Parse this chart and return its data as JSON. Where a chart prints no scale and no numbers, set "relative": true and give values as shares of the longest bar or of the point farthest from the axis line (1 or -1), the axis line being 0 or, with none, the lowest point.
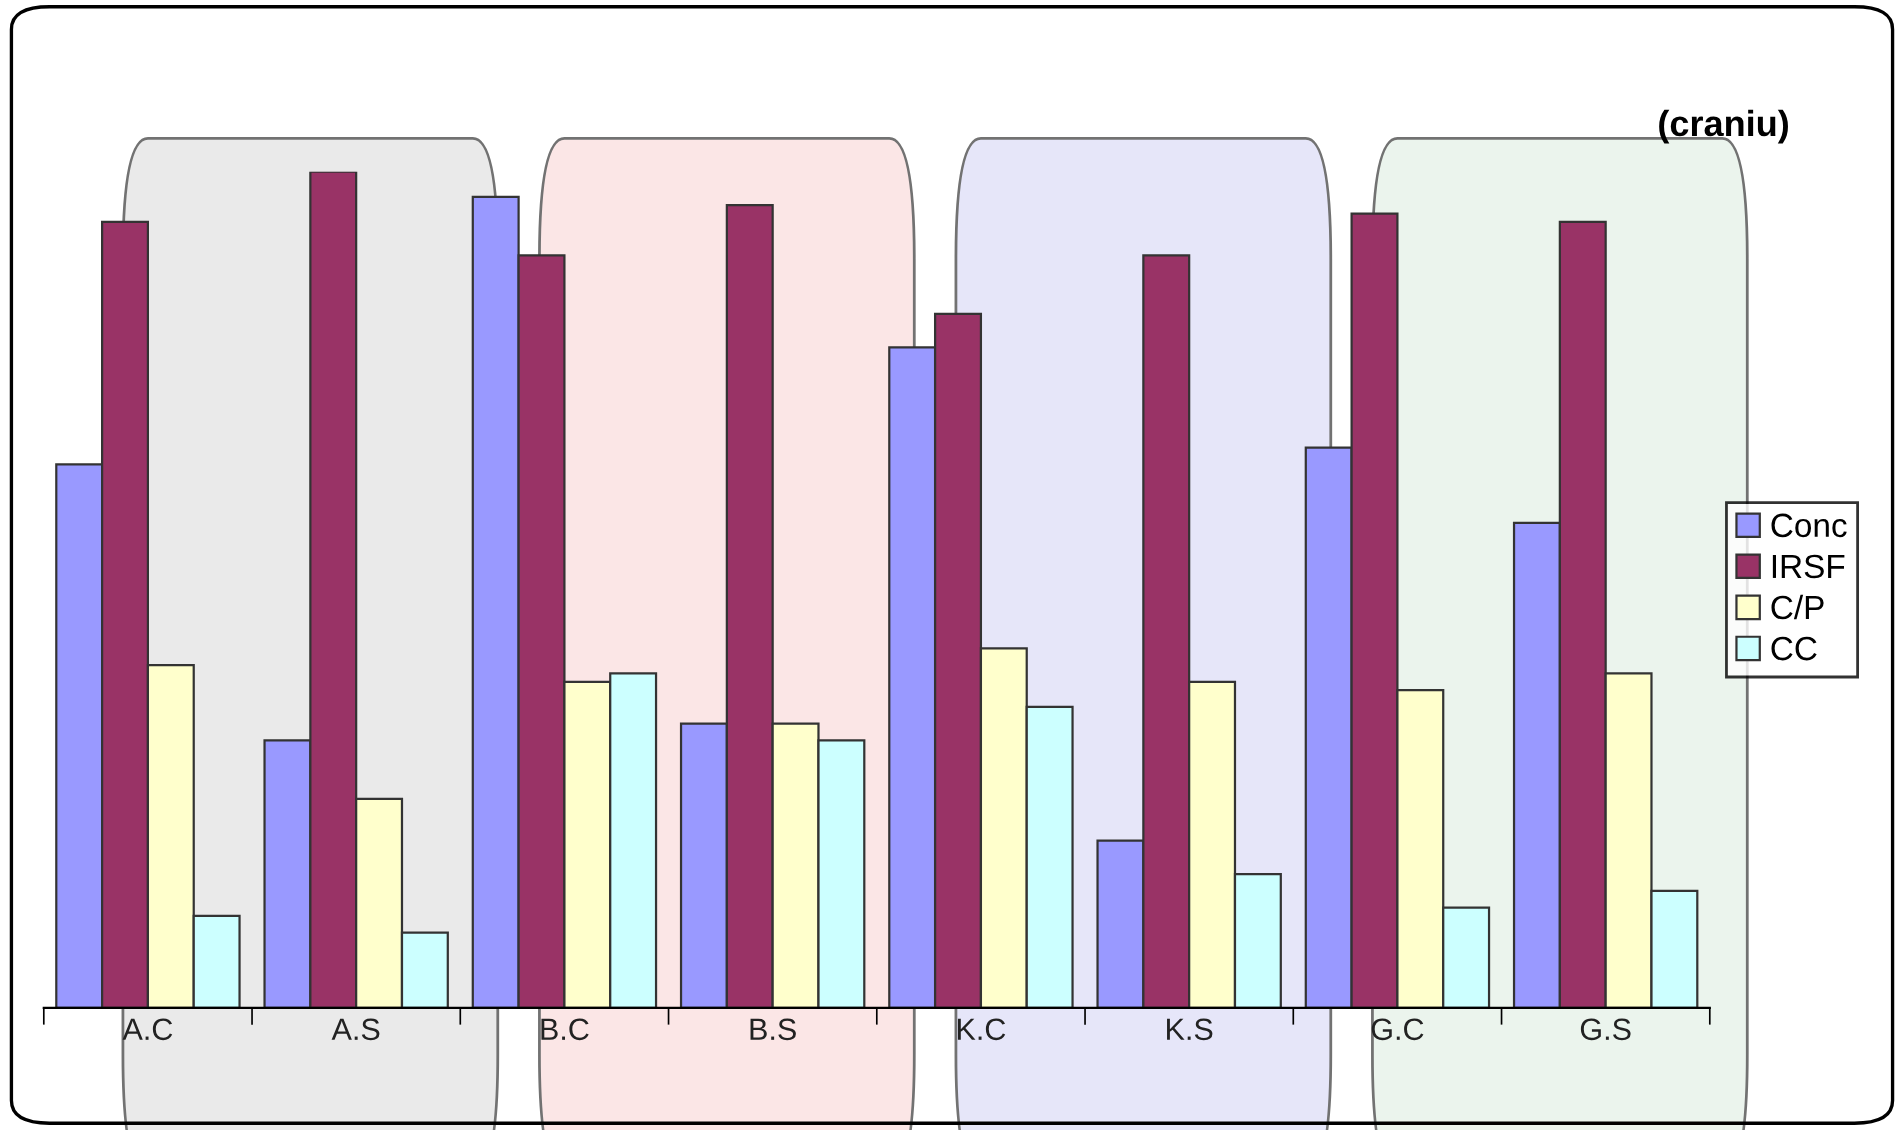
{
  "chart_data": {
    "type": "bar",
    "title": "(craniu)",
    "relative": true,
    "legend": "right",
    "grid": false,
    "categories": [
      "A.C",
      "A.S",
      "B.C",
      "B.S",
      "K.C",
      "K.S",
      "G.C",
      "G.S"
    ],
    "series": [
      {
        "name": "Conc",
        "color": "#9999ff",
        "values": [
          0.65,
          0.32,
          0.97,
          0.34,
          0.79,
          0.2,
          0.67,
          0.58
        ]
      },
      {
        "name": "IRSF",
        "color": "#993366",
        "values": [
          0.94,
          1.0,
          0.9,
          0.96,
          0.83,
          0.9,
          0.95,
          0.94
        ]
      },
      {
        "name": "C/P",
        "color": "#ffffcc",
        "values": [
          0.41,
          0.25,
          0.39,
          0.34,
          0.43,
          0.39,
          0.38,
          0.4
        ]
      },
      {
        "name": "CC",
        "color": "#ccffff",
        "values": [
          0.11,
          0.09,
          0.4,
          0.32,
          0.36,
          0.16,
          0.12,
          0.14
        ]
      }
    ]
  }
}
